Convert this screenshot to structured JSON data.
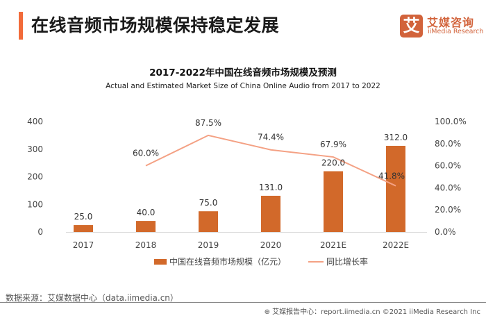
{
  "header": {
    "title": "在线音频市场规模保持稳定发展",
    "logo_mark": "艾",
    "logo_cn": "艾媒咨询",
    "logo_en": "iiMedia Research"
  },
  "colors": {
    "accent": "#f26b3a",
    "bar": "#d2692a",
    "line": "#f4a184",
    "brand": "#d2633b"
  },
  "chart_data": {
    "type": "bar",
    "title": "2017-2022年中国在线音频市场规模及预测",
    "subtitle": "Actual and Estimated Market Size of China Online Audio from 2017 to 2022",
    "categories": [
      "2017",
      "2018",
      "2019",
      "2020",
      "2021E",
      "2022E"
    ],
    "series": [
      {
        "name": "中国在线音频市场规模（亿元）",
        "type": "bar",
        "axis": "left",
        "values": [
          25.0,
          40.0,
          75.0,
          131.0,
          220.0,
          312.0
        ],
        "labels": [
          "25.0",
          "40.0",
          "75.0",
          "131.0",
          "220.0",
          "312.0"
        ]
      },
      {
        "name": "同比增长率",
        "type": "line",
        "axis": "right",
        "values": [
          null,
          60.0,
          87.5,
          74.4,
          67.9,
          41.8
        ],
        "labels": [
          "",
          "60.0%",
          "87.5%",
          "74.4%",
          "67.9%",
          "41.8%"
        ]
      }
    ],
    "y_left": {
      "ylim": [
        0,
        400
      ],
      "ticks": [
        "0",
        "100",
        "200",
        "300",
        "400"
      ],
      "tick_values": [
        0,
        100,
        200,
        300,
        400
      ]
    },
    "y_right": {
      "ylim": [
        0,
        100
      ],
      "ticks": [
        "0.0%",
        "20.0%",
        "40.0%",
        "60.0%",
        "80.0%",
        "100.0%"
      ],
      "tick_values": [
        0,
        20,
        40,
        60,
        80,
        100
      ]
    },
    "xlabel": "",
    "ylabel": "",
    "grid": false,
    "legend_position": "bottom"
  },
  "legend": {
    "bar_label": "中国在线音频市场规模（亿元）",
    "line_label": "同比增长率"
  },
  "footer": {
    "source": "数据来源：艾媒数据中心（data.iimedia.cn）",
    "copyright": "艾媒报告中心：report.iimedia.cn   ©2021  iiMedia Research  Inc"
  }
}
